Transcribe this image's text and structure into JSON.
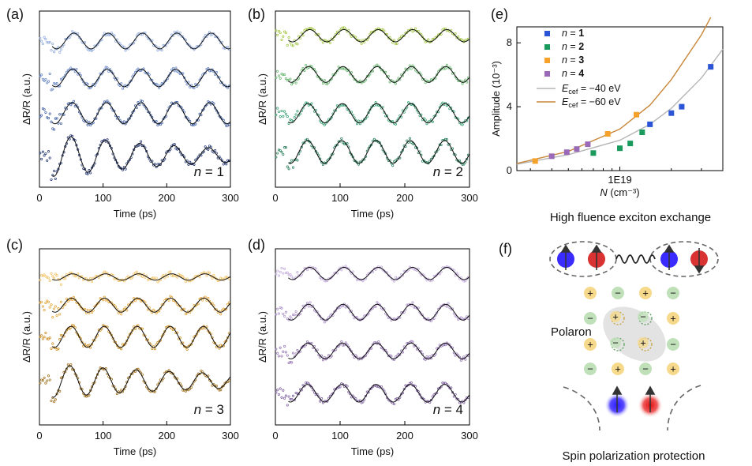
{
  "chart_data": [
    {
      "panel": "(a)",
      "type": "scatter",
      "subtitle": "n = 1",
      "n_label": "n",
      "n_value": "= 1",
      "xlabel": "Time (ps)",
      "ylabel": "ΔR/R (a.u.)",
      "xlim": [
        0,
        300
      ],
      "xticks": [
        "0",
        "100",
        "200",
        "300"
      ],
      "color": "#2a4a8e",
      "traces": [
        {
          "offset": 0.83,
          "amp": 0.045,
          "period": 54,
          "phase": 0,
          "decay": 0
        },
        {
          "offset": 0.62,
          "amp": 0.05,
          "period": 54,
          "phase": 0.2,
          "decay": 0
        },
        {
          "offset": 0.42,
          "amp": 0.06,
          "period": 54,
          "phase": 0.3,
          "decay": 0
        },
        {
          "offset": 0.18,
          "amp": 0.13,
          "period": 54,
          "phase": 0.5,
          "decay": 0.004
        }
      ],
      "colors": [
        "#8fa9dc",
        "#5e7fc2",
        "#3a5a9e",
        "#1b2f6e"
      ]
    },
    {
      "panel": "(b)",
      "type": "scatter",
      "subtitle": "n = 2",
      "n_label": "n",
      "n_value": "= 2",
      "xlabel": "Time (ps)",
      "ylabel": "ΔR/R (a.u.)",
      "xlim": [
        0,
        300
      ],
      "xticks": [
        "0",
        "100",
        "200",
        "300"
      ],
      "color": "#3f8f5a",
      "traces": [
        {
          "offset": 0.86,
          "amp": 0.035,
          "period": 53,
          "phase": 0,
          "decay": 0
        },
        {
          "offset": 0.64,
          "amp": 0.045,
          "period": 53,
          "phase": 0.2,
          "decay": 0
        },
        {
          "offset": 0.42,
          "amp": 0.055,
          "period": 53,
          "phase": 0.3,
          "decay": 0
        },
        {
          "offset": 0.2,
          "amp": 0.065,
          "period": 53,
          "phase": 0.4,
          "decay": 0
        }
      ],
      "colors": [
        "#9ec23e",
        "#63b36a",
        "#2e9a6c",
        "#1f7a55"
      ]
    },
    {
      "panel": "(c)",
      "type": "scatter",
      "subtitle": "n = 3",
      "n_label": "n",
      "n_value": "= 3",
      "xlabel": "Time (ps)",
      "ylabel": "ΔR/R (a.u.)",
      "xlim": [
        0,
        300
      ],
      "xticks": [
        "0",
        "100",
        "200",
        "300"
      ],
      "color": "#c98a1a",
      "traces": [
        {
          "offset": 0.84,
          "amp": 0.018,
          "period": 52,
          "phase": 0,
          "decay": 0
        },
        {
          "offset": 0.68,
          "amp": 0.04,
          "period": 52,
          "phase": 0.2,
          "decay": 0
        },
        {
          "offset": 0.5,
          "amp": 0.06,
          "period": 52,
          "phase": 0.3,
          "decay": 0
        },
        {
          "offset": 0.25,
          "amp": 0.1,
          "period": 52,
          "phase": 0.5,
          "decay": 0.003
        }
      ],
      "colors": [
        "#f0c060",
        "#e0a030",
        "#c98a1a",
        "#9a6a15"
      ]
    },
    {
      "panel": "(d)",
      "type": "scatter",
      "subtitle": "n = 4",
      "n_label": "n",
      "n_value": "= 4",
      "xlabel": "Time (ps)",
      "ylabel": "ΔR/R (a.u.)",
      "xlim": [
        0,
        300
      ],
      "xticks": [
        "0",
        "100",
        "200",
        "300"
      ],
      "color": "#8a66a8",
      "traces": [
        {
          "offset": 0.86,
          "amp": 0.035,
          "period": 53,
          "phase": 0,
          "decay": 0
        },
        {
          "offset": 0.64,
          "amp": 0.045,
          "period": 53,
          "phase": 0.2,
          "decay": 0
        },
        {
          "offset": 0.42,
          "amp": 0.045,
          "period": 53,
          "phase": 0.3,
          "decay": 0
        },
        {
          "offset": 0.18,
          "amp": 0.05,
          "period": 53,
          "phase": 0.4,
          "decay": 0
        }
      ],
      "colors": [
        "#c0a8da",
        "#a88cc8",
        "#9070b0",
        "#76579a"
      ]
    },
    {
      "panel": "(e)",
      "type": "scatter",
      "xlabel": "N (cm⁻³)",
      "ylabel": "Amplitude (10⁻³)",
      "xscale": "log",
      "xlim": [
        2.5e+18,
        4e+19
      ],
      "ylim": [
        0,
        9
      ],
      "xticks": [
        {
          "value": 1e+19,
          "label": "1E19"
        }
      ],
      "yticks": [
        0,
        4,
        8
      ],
      "series": [
        {
          "name": "n = 1",
          "color": "#2b55d6",
          "points": [
            [
              1.5e+19,
              2.9
            ],
            [
              2e+19,
              3.6
            ],
            [
              2.3e+19,
              4.0
            ],
            [
              3.4e+19,
              6.5
            ]
          ]
        },
        {
          "name": "n = 2",
          "color": "#1a9a5c",
          "points": [
            [
              7e+18,
              1.1
            ],
            [
              1e+19,
              1.4
            ],
            [
              1.15e+19,
              1.7
            ],
            [
              1.35e+19,
              2.4
            ]
          ]
        },
        {
          "name": "n = 3",
          "color": "#f5a12a",
          "points": [
            [
              3.2e+18,
              0.6
            ],
            [
              8.5e+18,
              2.3
            ],
            [
              1.25e+19,
              3.5
            ]
          ]
        },
        {
          "name": "n = 4",
          "color": "#9a6ab8",
          "points": [
            [
              4e+18,
              0.9
            ],
            [
              4.9e+18,
              1.15
            ],
            [
              5.6e+18,
              1.35
            ],
            [
              6.5e+18,
              1.65
            ]
          ]
        }
      ],
      "fits": [
        {
          "name_sym": "E",
          "name_sub": "cef",
          "name_rest": " = −40 eV",
          "color": "#b5b5b5",
          "points": [
            [
              2.5e+18,
              0.4
            ],
            [
              5e+18,
              1.0
            ],
            [
              1e+19,
              1.9
            ],
            [
              1.5e+19,
              2.9
            ],
            [
              2e+19,
              3.9
            ],
            [
              3e+19,
              5.8
            ],
            [
              4e+19,
              7.6
            ]
          ]
        },
        {
          "name_sym": "E",
          "name_sub": "cef",
          "name_rest": " = −60 eV",
          "color": "#c8873a",
          "points": [
            [
              2.5e+18,
              0.45
            ],
            [
              5e+18,
              1.2
            ],
            [
              1e+19,
              2.6
            ],
            [
              1.5e+19,
              4.1
            ],
            [
              2e+19,
              5.7
            ],
            [
              3e+19,
              8.5
            ],
            [
              3.4e+19,
              9.6
            ]
          ]
        }
      ]
    }
  ],
  "panel_labels": {
    "e": "(e)",
    "f": "(f)"
  },
  "schematic": {
    "top_caption": "High fluence exciton exchange",
    "polaron_label": "Polaron",
    "bottom_caption": "Spin polarization protection",
    "plus": "+",
    "minus": "−"
  }
}
